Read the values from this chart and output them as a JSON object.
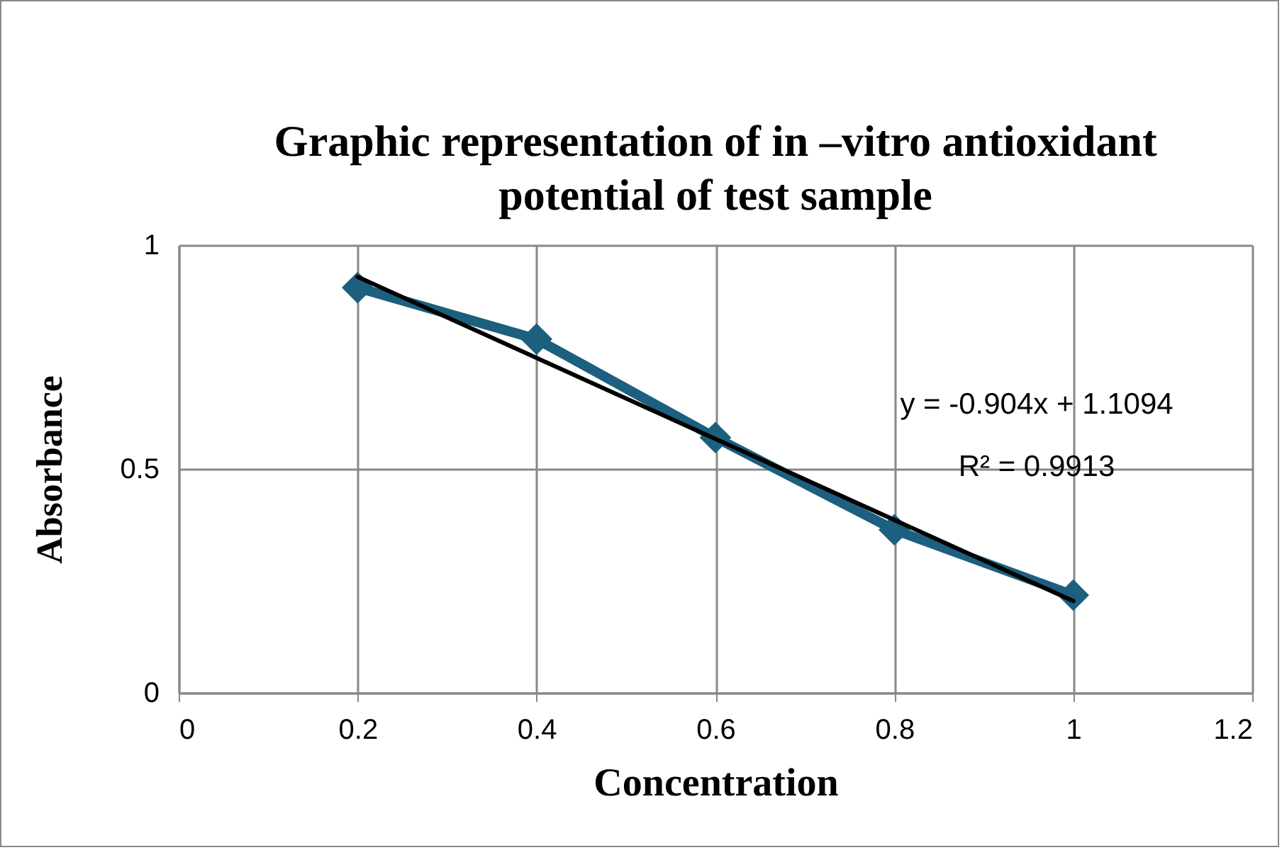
{
  "chart_data": {
    "type": "line",
    "title": "Graphic representation of in –vitro antioxidant potential of test sample",
    "xlabel": "Concentration",
    "ylabel": "Absorbance",
    "x": [
      0.2,
      0.4,
      0.6,
      0.8,
      1
    ],
    "series": [
      {
        "color": "#1c5f7e",
        "values": [
          0.905,
          0.79,
          0.57,
          0.364,
          0.218
        ],
        "marker": "diamond"
      },
      {
        "type": "line",
        "color": "#000000",
        "x": [
          0.2,
          1
        ],
        "values": [
          0.929,
          0.205
        ],
        "marker": "none"
      }
    ],
    "annotations": [
      "y = -0.904x + 1.1094",
      "R² = 0.9913"
    ],
    "xlim": [
      0,
      1.2
    ],
    "xticks": [
      0,
      0.2,
      0.4,
      0.6,
      0.8,
      1,
      1.2
    ],
    "ylim": [
      0,
      1
    ],
    "yticks": [
      0,
      0.5,
      1
    ],
    "grid": true
  }
}
